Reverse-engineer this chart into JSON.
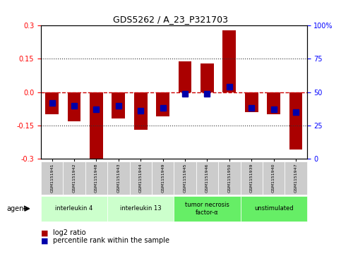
{
  "title": "GDS5262 / A_23_P321703",
  "samples": [
    "GSM1151941",
    "GSM1151942",
    "GSM1151948",
    "GSM1151943",
    "GSM1151944",
    "GSM1151949",
    "GSM1151945",
    "GSM1151946",
    "GSM1151950",
    "GSM1151939",
    "GSM1151940",
    "GSM1151947"
  ],
  "log2_ratio": [
    -0.1,
    -0.13,
    -0.3,
    -0.12,
    -0.17,
    -0.11,
    0.14,
    0.13,
    0.28,
    -0.09,
    -0.1,
    -0.26
  ],
  "percentile_rank": [
    42,
    40,
    37,
    40,
    36,
    38,
    49,
    49,
    54,
    38,
    37,
    35
  ],
  "groups": [
    {
      "label": "interleukin 4",
      "indices": [
        0,
        1,
        2
      ],
      "color": "#ccffcc"
    },
    {
      "label": "interleukin 13",
      "indices": [
        3,
        4,
        5
      ],
      "color": "#ccffcc"
    },
    {
      "label": "tumor necrosis\nfactor-α",
      "indices": [
        6,
        7,
        8
      ],
      "color": "#66ee66"
    },
    {
      "label": "unstimulated",
      "indices": [
        9,
        10,
        11
      ],
      "color": "#66ee66"
    }
  ],
  "bar_color": "#aa0000",
  "marker_color": "#0000aa",
  "ylim": [
    -0.3,
    0.3
  ],
  "yticks_left": [
    -0.3,
    -0.15,
    0.0,
    0.15,
    0.3
  ],
  "yticks_right": [
    0,
    25,
    50,
    75,
    100
  ],
  "hline_color": "#cc0000",
  "dotline_color": "#333333",
  "bg_color": "#ffffff",
  "plot_bg": "#ffffff",
  "bar_width": 0.6,
  "marker_size": 6
}
